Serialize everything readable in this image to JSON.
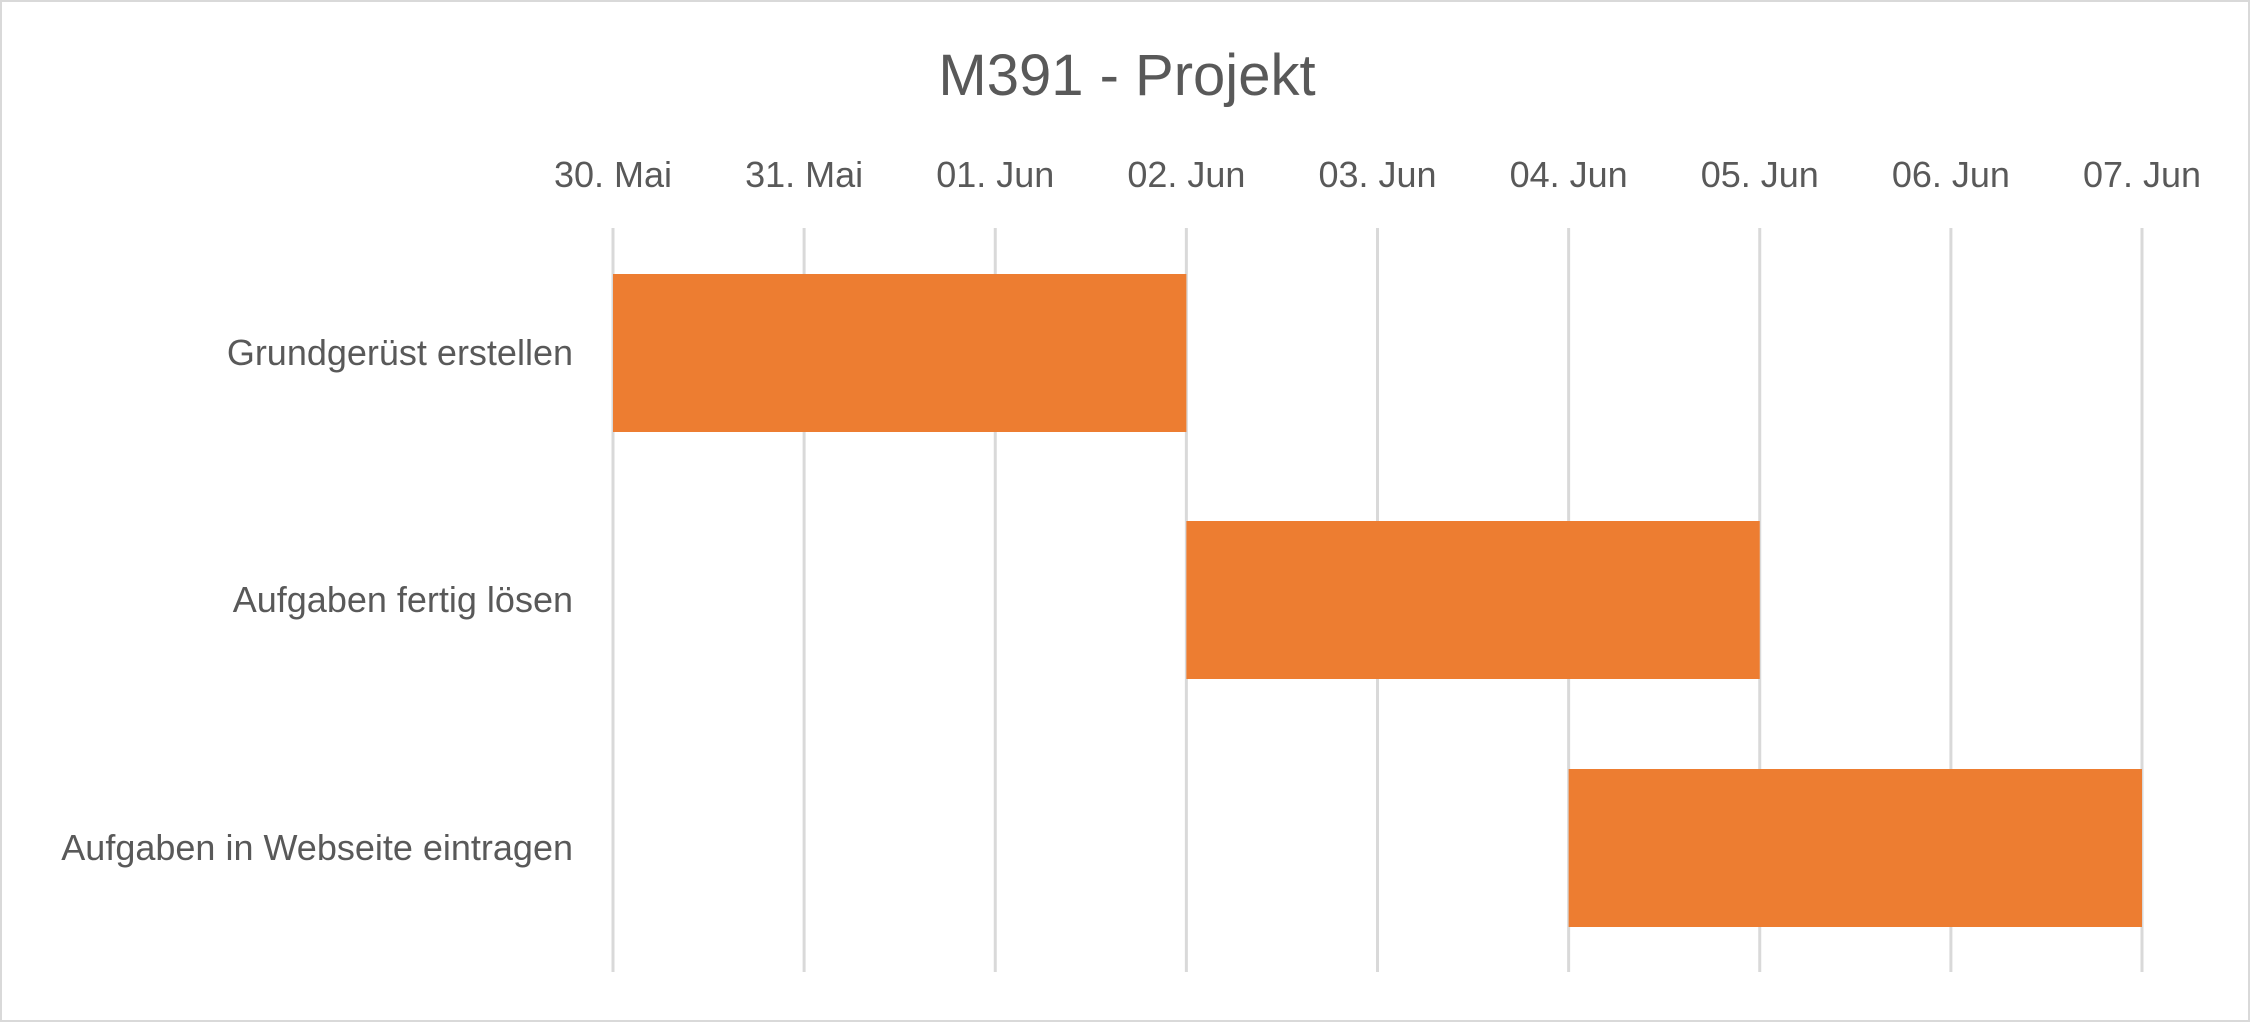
{
  "chart_data": {
    "type": "bar",
    "orientation": "horizontal",
    "subtype": "gantt",
    "title": "M391 - Projekt",
    "xlabel": "",
    "ylabel": "",
    "x_axis_position": "top",
    "x_ticks": [
      "30. Mai",
      "31. Mai",
      "01. Jun",
      "02. Jun",
      "03. Jun",
      "04. Jun",
      "05. Jun",
      "06. Jun",
      "07. Jun"
    ],
    "xlim": [
      "2023-05-30",
      "2023-06-07"
    ],
    "categories": [
      "Grundgerüst erstellen",
      "Aufgaben fertig lösen",
      "Aufgaben in Webseite eintragen"
    ],
    "tasks": [
      {
        "label": "Grundgerüst erstellen",
        "start": "2023-05-30",
        "end": "2023-06-02"
      },
      {
        "label": "Aufgaben fertig lösen",
        "start": "2023-06-02",
        "end": "2023-06-05"
      },
      {
        "label": "Aufgaben in Webseite eintragen",
        "start": "2023-06-04",
        "end": "2023-06-07"
      }
    ],
    "grid": true,
    "legend": "none",
    "bar_color": "#ED7D31",
    "gridline_color": "#D9D9D9",
    "text_color": "#595959"
  }
}
